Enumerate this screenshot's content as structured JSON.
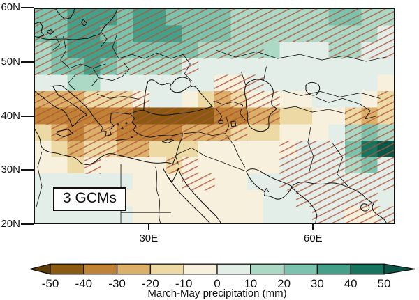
{
  "chart_data": {
    "type": "heatmap",
    "title": "3 GCMs",
    "colorbar": {
      "label": "March-May precipitation (mm)",
      "tick_labels": [
        "-50",
        "-40",
        "-30",
        "-20",
        "-10",
        "0",
        "10",
        "20",
        "30",
        "40",
        "50"
      ],
      "bin_edges": [
        -50,
        -40,
        -30,
        -20,
        -10,
        0,
        10,
        20,
        30,
        40,
        50
      ],
      "bin_colors": [
        "#8a5a11",
        "#c08336",
        "#dcb069",
        "#ecd9a4",
        "#f6f0dd",
        "#e2eee7",
        "#abd9c6",
        "#7cc3ad",
        "#44a089",
        "#16745f"
      ],
      "under_color": "#5f3d06",
      "over_color": "#0b5747"
    },
    "axes": {
      "lat_ticks": [
        {
          "label": "60N",
          "value": 60
        },
        {
          "label": "50N",
          "value": 50
        },
        {
          "label": "40N",
          "value": 40
        },
        {
          "label": "30N",
          "value": 30
        },
        {
          "label": "20N",
          "value": 20
        }
      ],
      "lon_ticks": [
        {
          "label": "30E",
          "value": 30
        },
        {
          "label": "60E",
          "value": 60
        }
      ],
      "lon_range": [
        9,
        75
      ],
      "lat_range": [
        20,
        60
      ]
    },
    "grid": {
      "n_cols": 22,
      "n_rows": 13,
      "cell_value_unit": "mm",
      "values_mm": [
        [
          25,
          25,
          35,
          35,
          35,
          25,
          35,
          35,
          25,
          25,
          25,
          25,
          15,
          15,
          15,
          15,
          15,
          15,
          25,
          25,
          15,
          15
        ],
        [
          25,
          25,
          35,
          35,
          25,
          25,
          35,
          35,
          35,
          25,
          25,
          25,
          15,
          15,
          15,
          15,
          15,
          15,
          15,
          15,
          15,
          5
        ],
        [
          15,
          25,
          35,
          35,
          35,
          25,
          25,
          25,
          25,
          25,
          15,
          15,
          15,
          15,
          15,
          5,
          5,
          5,
          15,
          15,
          5,
          5
        ],
        [
          15,
          25,
          25,
          35,
          25,
          15,
          15,
          15,
          15,
          5,
          5,
          5,
          5,
          5,
          5,
          5,
          5,
          5,
          5,
          5,
          5,
          5
        ],
        [
          5,
          5,
          15,
          15,
          5,
          5,
          5,
          5,
          5,
          5,
          5,
          -5,
          -5,
          5,
          5,
          5,
          5,
          5,
          5,
          5,
          5,
          -5
        ],
        [
          -25,
          -25,
          -25,
          -15,
          -15,
          -15,
          -5,
          5,
          5,
          -5,
          -15,
          -25,
          -15,
          -5,
          -5,
          -5,
          -5,
          5,
          5,
          5,
          -5,
          -15
        ],
        [
          -35,
          -35,
          -35,
          -35,
          -35,
          -35,
          -45,
          -45,
          -45,
          -45,
          -45,
          -35,
          -35,
          -25,
          -25,
          -15,
          -15,
          -5,
          -5,
          -15,
          -25,
          -15
        ],
        [
          -15,
          -25,
          -35,
          -25,
          -25,
          -35,
          -35,
          -35,
          -35,
          -25,
          -25,
          -25,
          -15,
          -15,
          -15,
          -5,
          -5,
          -5,
          5,
          15,
          25,
          15
        ],
        [
          -5,
          -15,
          -25,
          -15,
          -15,
          -25,
          -25,
          -15,
          -15,
          -15,
          -5,
          -5,
          -5,
          -5,
          -5,
          -5,
          5,
          5,
          5,
          25,
          45,
          55
        ],
        [
          -5,
          -5,
          -15,
          -5,
          -5,
          -5,
          -5,
          -5,
          -15,
          -5,
          -5,
          -5,
          -5,
          -5,
          -5,
          5,
          5,
          5,
          5,
          15,
          25,
          5
        ],
        [
          5,
          5,
          5,
          5,
          5,
          5,
          -5,
          -5,
          -5,
          -5,
          -5,
          -5,
          -5,
          5,
          5,
          5,
          5,
          5,
          5,
          5,
          5,
          5
        ],
        [
          5,
          5,
          5,
          5,
          5,
          -5,
          -5,
          -5,
          -5,
          -5,
          -5,
          -5,
          -5,
          -5,
          5,
          5,
          5,
          5,
          5,
          5,
          5,
          5
        ],
        [
          5,
          5,
          5,
          5,
          5,
          5,
          -5,
          -5,
          -5,
          -5,
          -5,
          -5,
          -5,
          -5,
          5,
          5,
          5,
          5,
          5,
          -5,
          -5,
          5
        ]
      ],
      "hatch_rows": [
        "1111111111111111111111",
        "1111111111111111111111",
        "1111111111111100001111",
        "1111111111000000000000",
        "0000000000011100000000",
        "1111111000011110000001",
        "1111111111111110000111",
        "0111111111111000000111",
        "0011111000000001111111",
        "0001000011000001111111",
        "0000000001100001111111",
        "0000000000000000111110",
        "0000000000000000011111"
      ]
    },
    "line_color": "#1a1a1a",
    "hatch_color": "#b2543c",
    "frame_color": "#111111"
  }
}
